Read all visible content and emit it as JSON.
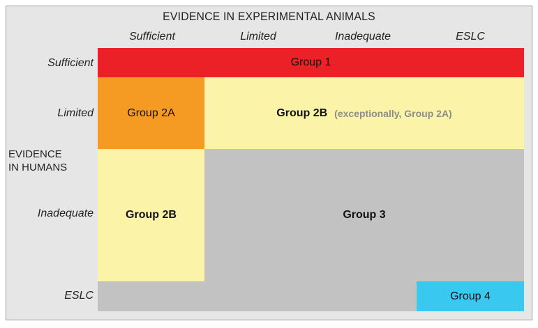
{
  "title": "EVIDENCE IN EXPERIMENTAL ANIMALS",
  "side_label": [
    "EVIDENCE",
    "IN HUMANS"
  ],
  "columns": [
    "Sufficient",
    "Limited",
    "Inadequate",
    "ESLC"
  ],
  "rows": [
    "Sufficient",
    "Limited",
    "Inadequate",
    "ESLC"
  ],
  "groups": {
    "group1": "Group 1",
    "group2a": "Group 2A",
    "group2b_limited": "Group 2B",
    "group2b_note": "(exceptionally, Group 2A)",
    "group2b_inadequate": "Group 2B",
    "group3": "Group 3",
    "group4": "Group 4"
  },
  "colors": {
    "group1": "#ec2127",
    "group2a": "#f59a23",
    "group2b": "#fbf4a8",
    "group3": "#c2c2c2",
    "group4": "#38c8f0",
    "panel": "#e6e6e6"
  }
}
